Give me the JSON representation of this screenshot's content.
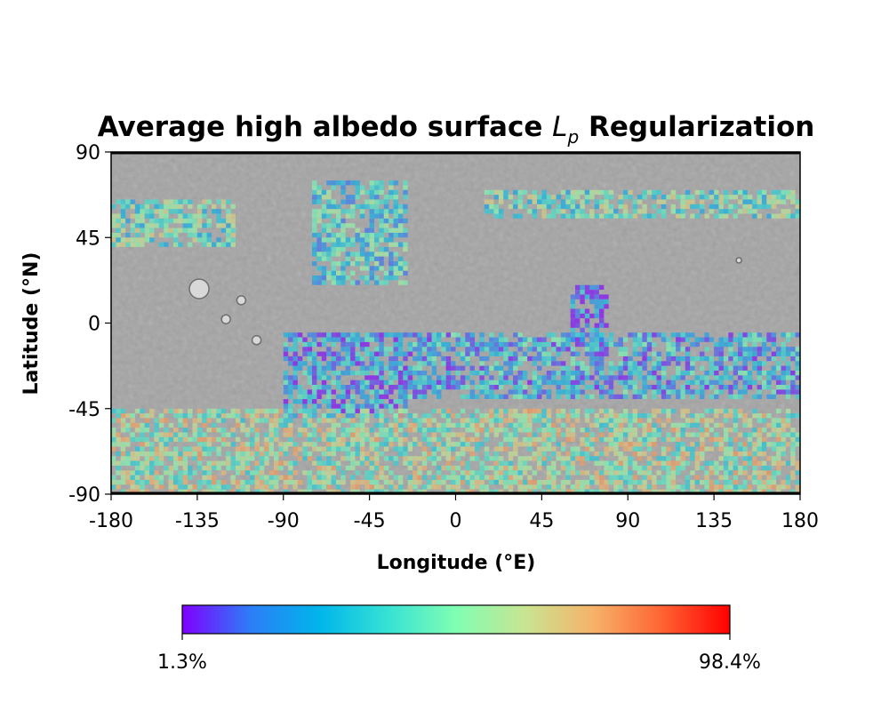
{
  "chart_data": {
    "type": "heatmap",
    "title_prefix": "Average high albedo surface ",
    "title_symbol": "L",
    "title_subscript": "p",
    "title_suffix": " Regularization",
    "xlabel": "Longitude (°E)",
    "ylabel": "Latitude (°N)",
    "xlim": [
      -180,
      180
    ],
    "ylim": [
      -90,
      90
    ],
    "xticks": [
      "-180",
      "-135",
      "-90",
      "-45",
      "0",
      "45",
      "90",
      "135",
      "180"
    ],
    "yticks": [
      "90",
      "45",
      "0",
      "-45",
      "-90"
    ],
    "colormap": "rainbow",
    "colorbar": {
      "min_label": "1.3%",
      "max_label": "98.4%",
      "min": 1.3,
      "max": 98.4,
      "orientation": "horizontal",
      "placement": "bottom",
      "colors": [
        "#7f00ff",
        "#2c7ef7",
        "#00b5eb",
        "#36e2d4",
        "#80feb3",
        "#c8e592",
        "#f5b36a",
        "#ff6433",
        "#ff0000"
      ]
    },
    "basemap": "grayscale shaded-relief map of Mars",
    "regions": [
      {
        "lon": [
          -180,
          -115
        ],
        "lat": [
          40,
          65
        ],
        "level": 0.45
      },
      {
        "lon": [
          -75,
          -25
        ],
        "lat": [
          20,
          75
        ],
        "level": 0.35
      },
      {
        "lon": [
          15,
          180
        ],
        "lat": [
          55,
          70
        ],
        "level": 0.45
      },
      {
        "lon": [
          60,
          80
        ],
        "lat": [
          -10,
          20
        ],
        "level": 0.1
      },
      {
        "lon": [
          -90,
          -25
        ],
        "lat": [
          -50,
          -5
        ],
        "level": 0.2
      },
      {
        "lon": [
          -25,
          180
        ],
        "lat": [
          -40,
          -5
        ],
        "level": 0.25
      },
      {
        "lon": [
          -180,
          180
        ],
        "lat": [
          -90,
          -45
        ],
        "level": 0.55
      }
    ]
  }
}
